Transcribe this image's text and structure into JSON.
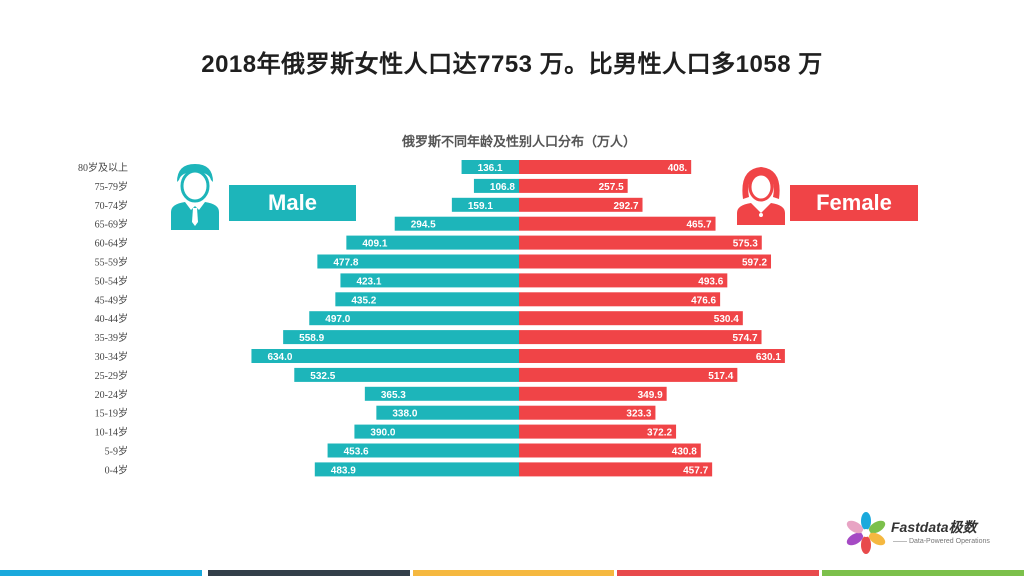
{
  "headline": "2018年俄罗斯女性人口达7753 万。比男性人口多1058 万",
  "legend": {
    "male": "Male",
    "female": "Female"
  },
  "logo": {
    "name": "Fastdata极数",
    "tagline": "—— Data-Powered Operations"
  },
  "colors": {
    "male": "#1db5ba",
    "female": "#f04447",
    "stripes": [
      "#1aa9dc",
      "#333f4a",
      "#f5b840",
      "#e84a4c",
      "#7cc04b"
    ]
  },
  "chart_data": {
    "type": "bar",
    "orientation": "horizontal-population-pyramid",
    "title": "俄罗斯不同年龄及性别人口分布（万人）",
    "categories": [
      "80岁及以上",
      "75-79岁",
      "70-74岁",
      "65-69岁",
      "60-64岁",
      "55-59岁",
      "50-54岁",
      "45-49岁",
      "40-44岁",
      "35-39岁",
      "30-34岁",
      "25-29岁",
      "20-24岁",
      "15-19岁",
      "10-14岁",
      "5-9岁",
      "0-4岁"
    ],
    "series": [
      {
        "name": "Male",
        "values": [
          136.1,
          106.8,
          159.1,
          294.5,
          409.1,
          477.8,
          423.1,
          435.2,
          497.0,
          558.9,
          634.0,
          532.5,
          365.3,
          338.0,
          390.0,
          453.6,
          483.9
        ]
      },
      {
        "name": "Female",
        "values": [
          408.0,
          257.5,
          292.7,
          465.7,
          575.3,
          597.2,
          493.6,
          476.6,
          530.4,
          574.7,
          630.1,
          517.4,
          349.9,
          323.3,
          372.2,
          430.8,
          457.7
        ]
      }
    ],
    "value_labels": {
      "Male": [
        "136.1",
        "106.8",
        "159.1",
        "294.5",
        "409.1",
        "477.8",
        "423.1",
        "435.2",
        "497.0",
        "558.9",
        "634.0",
        "532.5",
        "365.3",
        "338.0",
        "390.0",
        "453.6",
        "483.9"
      ],
      "Female": [
        "408.",
        "257.5",
        "292.7",
        "465.7",
        "575.3",
        "597.2",
        "493.6",
        "476.6",
        "530.4",
        "574.7",
        "630.1",
        "517.4",
        "349.9",
        "323.3",
        "372.2",
        "430.8",
        "457.7"
      ]
    },
    "grid": false,
    "legend_position": "top"
  }
}
